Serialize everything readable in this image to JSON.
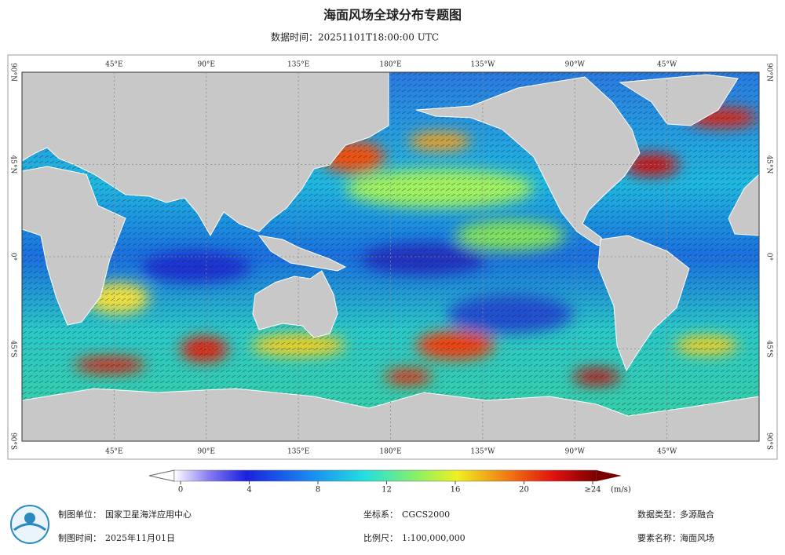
{
  "title": "海面风场全球分布专题图",
  "subtitle": "数据时间：20251101T18:00:00 UTC",
  "map": {
    "lon_labels": [
      "45°E",
      "90°E",
      "135°E",
      "180°E",
      "135°W",
      "90°W",
      "45°W"
    ],
    "lat_labels": [
      "90°N",
      "45°N",
      "0°",
      "45°S",
      "90°S"
    ]
  },
  "colorbar": {
    "ticks": [
      0,
      4,
      8,
      12,
      16,
      20,
      {
        "value": 24,
        "label": "≥24"
      }
    ],
    "unit": "(m/s)"
  },
  "footer": [
    {
      "label": "制图单位：",
      "value": "国家卫星海洋应用中心"
    },
    {
      "label": "坐标系：",
      "value": "CGCS2000"
    },
    {
      "label": "数据类型：",
      "value": "多源融合"
    },
    {
      "label": "制图时间：",
      "value": "2025年11月01日"
    },
    {
      "label": "比例尺：",
      "value": "1:100,000,000"
    },
    {
      "label": "要素名称：",
      "value": "海面风场"
    }
  ]
}
